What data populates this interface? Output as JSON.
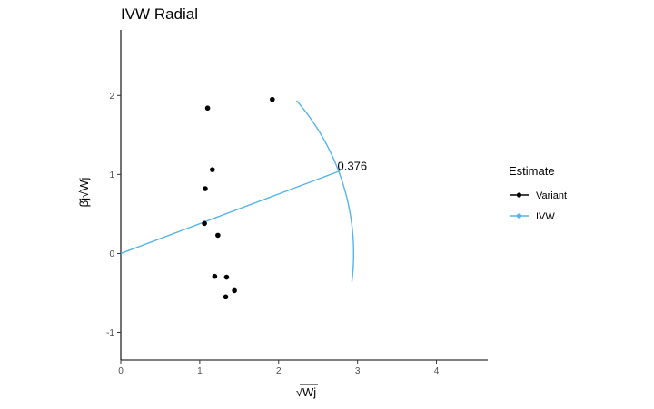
{
  "chart_data": {
    "type": "scatter",
    "title": "IVW Radial",
    "xlabel": "√Wj",
    "ylabel": "β̂j√Wj",
    "xlim": [
      0,
      4.65
    ],
    "ylim": [
      -1.35,
      2.83
    ],
    "x_ticks": [
      0,
      1,
      2,
      3,
      4
    ],
    "y_ticks": [
      -1,
      0,
      1,
      2
    ],
    "grid": false,
    "legend": {
      "title": "Estimate",
      "position": "right",
      "entries": [
        {
          "label": "Variant",
          "color": "#000000"
        },
        {
          "label": "IVW",
          "color": "#56B4E9"
        }
      ]
    },
    "series": [
      {
        "name": "Variant",
        "color": "#000000",
        "points": [
          {
            "x": 1.92,
            "y": 1.95
          },
          {
            "x": 1.1,
            "y": 1.84
          },
          {
            "x": 1.16,
            "y": 1.06
          },
          {
            "x": 1.07,
            "y": 0.82
          },
          {
            "x": 1.06,
            "y": 0.38
          },
          {
            "x": 1.23,
            "y": 0.23
          },
          {
            "x": 1.19,
            "y": -0.29
          },
          {
            "x": 1.34,
            "y": -0.3
          },
          {
            "x": 1.44,
            "y": -0.47
          },
          {
            "x": 1.33,
            "y": -0.55
          }
        ]
      }
    ],
    "ivw": {
      "name": "IVW",
      "color": "#56B4E9",
      "estimate": 0.376,
      "estimate_label": "0.376",
      "line": {
        "x0": 0,
        "y0": 0,
        "x1": 2.78,
        "y1": 1.046
      },
      "arc_radius": 2.95,
      "arc_angle_min_deg": -7,
      "arc_angle_max_deg": 41
    }
  }
}
